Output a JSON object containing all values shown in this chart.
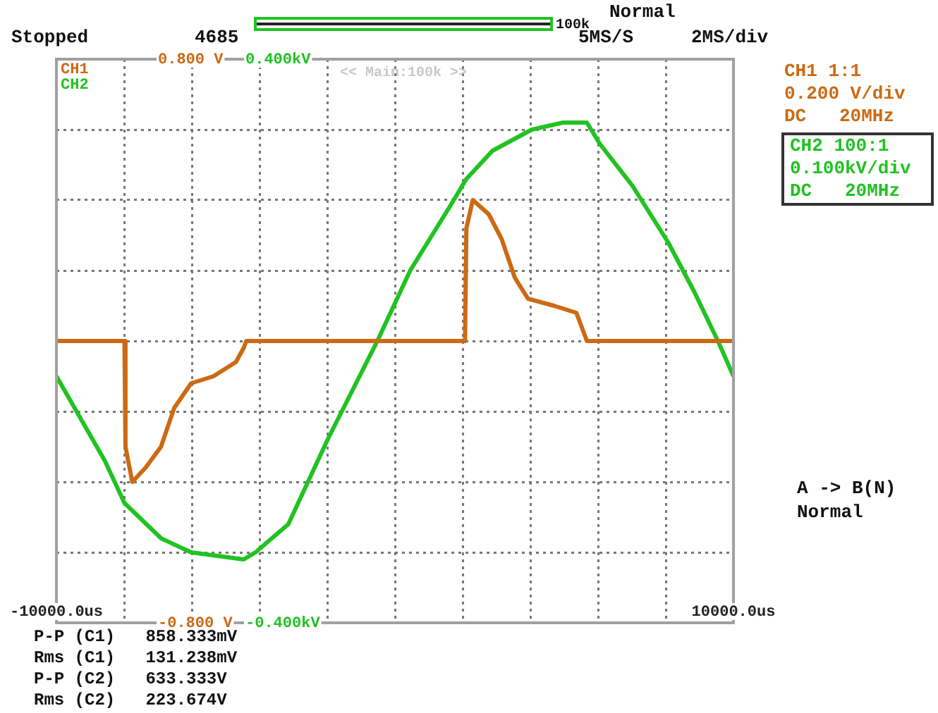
{
  "chart_data": {
    "type": "line",
    "xlim": [
      -10000,
      10000
    ],
    "xticks": [
      {
        "value": -10000,
        "label": "-10000.0us"
      },
      {
        "value": -8000,
        "label": null
      },
      {
        "value": -6000,
        "label": null
      },
      {
        "value": -4000,
        "label": null
      },
      {
        "value": -2000,
        "label": null
      },
      {
        "value": 0,
        "label": null
      },
      {
        "value": 2000,
        "label": null
      },
      {
        "value": 4000,
        "label": null
      },
      {
        "value": 6000,
        "label": null
      },
      {
        "value": 8000,
        "label": null
      },
      {
        "value": 10000,
        "label": "10000.0us"
      }
    ],
    "ylim": [
      -0.8,
      0.8
    ],
    "yticks": [
      {
        "value": -0.8,
        "label": "-0.800 V"
      },
      {
        "value": -0.6,
        "label": null
      },
      {
        "value": -0.4,
        "label": null
      },
      {
        "value": -0.2,
        "label": null
      },
      {
        "value": 0,
        "label": null
      },
      {
        "value": 0.2,
        "label": null
      },
      {
        "value": 0.4,
        "label": null
      },
      {
        "value": 0.6,
        "label": null
      },
      {
        "value": 0.8,
        "label": "0.800 V"
      }
    ],
    "y2lim": [
      -0.4,
      0.4
    ],
    "y2ticks": [
      {
        "value": -0.4,
        "label": "-0.400kV"
      },
      {
        "value": 0.4,
        "label": "0.400kV"
      }
    ],
    "grid": true,
    "series": [
      {
        "name": "CH1",
        "color": "#cc6a14",
        "axis": "y",
        "x": [
          -10000,
          -7990,
          -7960,
          -7760,
          -7370,
          -6910,
          -6520,
          -6020,
          -5360,
          -4700,
          -4470,
          -4390,
          2070,
          2110,
          2300,
          2770,
          3150,
          3540,
          3930,
          4700,
          5360,
          5670,
          10000
        ],
        "values": [
          0,
          0,
          -0.3,
          -0.4,
          -0.36,
          -0.3,
          -0.19,
          -0.12,
          -0.1,
          -0.06,
          -0.02,
          0,
          0,
          0.32,
          0.4,
          0.36,
          0.29,
          0.18,
          0.12,
          0.1,
          0.08,
          0,
          0
        ]
      },
      {
        "name": "CH2",
        "color": "#22c222",
        "axis": "y2",
        "x": [
          -10000,
          -8570,
          -7990,
          -6910,
          -6020,
          -4470,
          -4120,
          -3150,
          -1990,
          -520,
          450,
          1610,
          2110,
          2880,
          4040,
          4970,
          5670,
          6050,
          7020,
          8070,
          8840,
          9540,
          10000
        ],
        "values": [
          -0.05,
          -0.17,
          -0.23,
          -0.28,
          -0.3,
          -0.31,
          -0.3,
          -0.26,
          -0.14,
          0,
          0.1,
          0.19,
          0.23,
          0.27,
          0.3,
          0.31,
          0.31,
          0.28,
          0.22,
          0.14,
          0.07,
          0,
          -0.05
        ]
      }
    ],
    "annotations": [
      "Stopped",
      "4685",
      "100k",
      "Normal",
      "5MS/S",
      "2MS/div",
      "<< Main:100k >>",
      "CH1 1:1",
      "0.200 V/div",
      "DC   20MHz",
      "CH2 100:1",
      "0.100kV/div",
      "DC   20MHz",
      "A -> B(N)",
      "Normal",
      "P-P (C1)   858.333mV",
      "Rms (C1)   131.238mV",
      "P-P (C2)   633.333V",
      "Rms (C2)   223.674V"
    ]
  }
}
